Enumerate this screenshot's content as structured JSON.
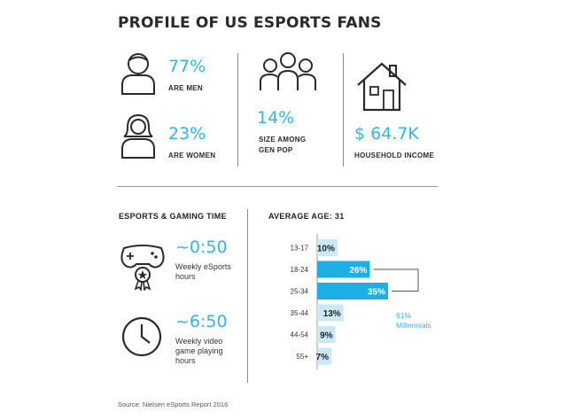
{
  "title": "PROFILE OF US ESPORTS FANS",
  "stats": {
    "men_value": "77%",
    "men_label": "ARE MEN",
    "women_value": "23%",
    "women_label": "ARE WOMEN",
    "genpop_value": "14%",
    "genpop_label_1": "SIZE AMONG",
    "genpop_label_2": "GEN POP",
    "income_value": "$ 64.7K",
    "income_label": "HOUSEHOLD INCOME"
  },
  "time_section": {
    "heading": "ESPORTS & GAMING TIME",
    "esports_value": "~0:50",
    "esports_label_1": "Weekly eSports",
    "esports_label_2": "hours",
    "video_value": "~6:50",
    "video_label_1": "Weekly video",
    "video_label_2": "game playing",
    "video_label_3": "hours"
  },
  "age_section": {
    "heading": "AVERAGE AGE: 31",
    "millennials_value": "61%",
    "millennials_label": "Millennials"
  },
  "source": "Source: Nielsen eSports Report 2016",
  "colors": {
    "accent_blue": "#33b5e5",
    "bar_light": "#c9e9f7",
    "bar_dark": "#1eaee6",
    "text_dark": "#2a2a2a"
  },
  "icons": [
    "man-icon",
    "woman-icon",
    "group-icon",
    "house-icon",
    "gamepad-badge-icon",
    "clock-icon"
  ],
  "chart_data": {
    "type": "bar",
    "orientation": "horizontal",
    "categories": [
      "13-17",
      "18-24",
      "25-34",
      "35-44",
      "44-54",
      "55+"
    ],
    "values": [
      10,
      26,
      35,
      13,
      9,
      7
    ],
    "value_labels": [
      "10%",
      "26%",
      "35%",
      "13%",
      "9%",
      "7%"
    ],
    "highlighted": [
      "18-24",
      "25-34"
    ],
    "title": "AVERAGE AGE: 31",
    "xlabel": "",
    "ylabel": "",
    "xlim": [
      0,
      35
    ]
  }
}
